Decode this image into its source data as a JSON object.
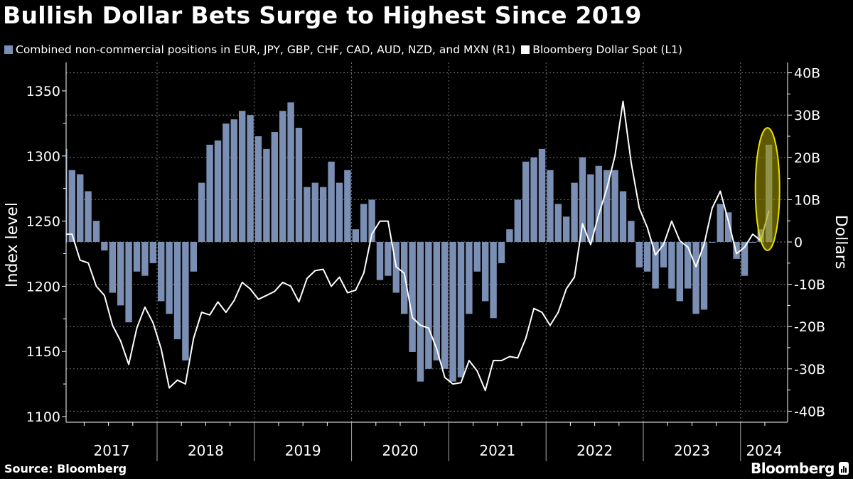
{
  "title": "Bullish Dollar Bets Surge to Highest Since 2019",
  "legend": [
    {
      "label": "Combined non-commercial positions in EUR, JPY, GBP, CHF, CAD, AUD, NZD, and MXN (R1)",
      "color": "#7b8fb5"
    },
    {
      "label": "Bloomberg Dollar Spot (L1)",
      "color": "#ffffff"
    }
  ],
  "source": "Source: Bloomberg",
  "logo": "Bloomberg",
  "colors": {
    "bars": "#7b8fb5",
    "line": "#ffffff",
    "highlight_stroke": "#e6e000",
    "highlight_fill": "#9c9400"
  },
  "chart_data": {
    "type": "bar+line",
    "title": "Bullish Dollar Bets Surge to Highest Since 2019",
    "left_axis": {
      "label": "Index level",
      "range": [
        1095,
        1370
      ],
      "ticks": [
        1100,
        1150,
        1200,
        1250,
        1300,
        1350
      ]
    },
    "right_axis": {
      "label": "Dollars",
      "range": [
        -42,
        45
      ],
      "ticks": [
        40,
        30,
        20,
        10,
        0,
        -10,
        -20,
        -30,
        -40
      ],
      "tick_labels": [
        "40B",
        "30B",
        "20B",
        "10B",
        "0",
        "-10B",
        "-20B",
        "-30B",
        "-40B"
      ]
    },
    "x_axis": {
      "tick_labels": [
        "2017",
        "2018",
        "2019",
        "2020",
        "2021",
        "2022",
        "2023",
        "2024"
      ]
    },
    "grid": true,
    "highlight": {
      "shape": "ellipse",
      "around": "2024-04 positions spike"
    },
    "months": [
      "2017-01",
      "2017-02",
      "2017-03",
      "2017-04",
      "2017-05",
      "2017-06",
      "2017-07",
      "2017-08",
      "2017-09",
      "2017-10",
      "2017-11",
      "2017-12",
      "2018-01",
      "2018-02",
      "2018-03",
      "2018-04",
      "2018-05",
      "2018-06",
      "2018-07",
      "2018-08",
      "2018-09",
      "2018-10",
      "2018-11",
      "2018-12",
      "2019-01",
      "2019-02",
      "2019-03",
      "2019-04",
      "2019-05",
      "2019-06",
      "2019-07",
      "2019-08",
      "2019-09",
      "2019-10",
      "2019-11",
      "2019-12",
      "2020-01",
      "2020-02",
      "2020-03",
      "2020-04",
      "2020-05",
      "2020-06",
      "2020-07",
      "2020-08",
      "2020-09",
      "2020-10",
      "2020-11",
      "2020-12",
      "2021-01",
      "2021-02",
      "2021-03",
      "2021-04",
      "2021-05",
      "2021-06",
      "2021-07",
      "2021-08",
      "2021-09",
      "2021-10",
      "2021-11",
      "2021-12",
      "2022-01",
      "2022-02",
      "2022-03",
      "2022-04",
      "2022-05",
      "2022-06",
      "2022-07",
      "2022-08",
      "2022-09",
      "2022-10",
      "2022-11",
      "2022-12",
      "2023-01",
      "2023-02",
      "2023-03",
      "2023-04",
      "2023-05",
      "2023-06",
      "2023-07",
      "2023-08",
      "2023-09",
      "2023-10",
      "2023-11",
      "2023-12",
      "2024-01",
      "2024-02",
      "2024-03",
      "2024-04"
    ],
    "series": [
      {
        "name": "Combined non-commercial positions in EUR, JPY, GBP, CHF, CAD, AUD, NZD, and MXN (R1)",
        "axis": "right",
        "unit": "billion USD",
        "type": "bar",
        "values": [
          22,
          17,
          16,
          12,
          5,
          -2,
          -12,
          -15,
          -19,
          -7,
          -8,
          -5,
          -14,
          -17,
          -23,
          -28,
          -7,
          14,
          23,
          24,
          28,
          29,
          31,
          30,
          25,
          22,
          26,
          31,
          33,
          27,
          13,
          14,
          13,
          19,
          14,
          17,
          3,
          9,
          10,
          -9,
          -8,
          -12,
          -17,
          -26,
          -33,
          -30,
          -28,
          -30,
          -33,
          -32,
          -17,
          -7,
          -14,
          -18,
          -5,
          3,
          10,
          19,
          20,
          22,
          17,
          9,
          6,
          14,
          20,
          16,
          18,
          17,
          17,
          12,
          5,
          -6,
          -7,
          -11,
          -6,
          -11,
          -14,
          -11,
          -17,
          -16,
          0,
          9,
          7,
          -4,
          -8,
          0,
          3,
          23
        ]
      },
      {
        "name": "Bloomberg Dollar Spot (L1)",
        "axis": "left",
        "type": "line",
        "values": [
          1240,
          1240,
          1220,
          1218,
          1200,
          1193,
          1170,
          1158,
          1140,
          1168,
          1184,
          1172,
          1152,
          1122,
          1128,
          1125,
          1160,
          1180,
          1178,
          1188,
          1180,
          1189,
          1203,
          1198,
          1190,
          1193,
          1196,
          1203,
          1200,
          1188,
          1206,
          1212,
          1213,
          1200,
          1207,
          1195,
          1197,
          1210,
          1240,
          1250,
          1250,
          1215,
          1210,
          1176,
          1170,
          1168,
          1152,
          1130,
          1125,
          1126,
          1143,
          1135,
          1120,
          1143,
          1143,
          1146,
          1145,
          1160,
          1183,
          1180,
          1170,
          1180,
          1198,
          1207,
          1248,
          1232,
          1255,
          1275,
          1300,
          1342,
          1295,
          1260,
          1245,
          1224,
          1232,
          1250,
          1235,
          1230,
          1215,
          1232,
          1260,
          1273,
          1250,
          1225,
          1230,
          1240,
          1235,
          1258
        ]
      }
    ]
  }
}
